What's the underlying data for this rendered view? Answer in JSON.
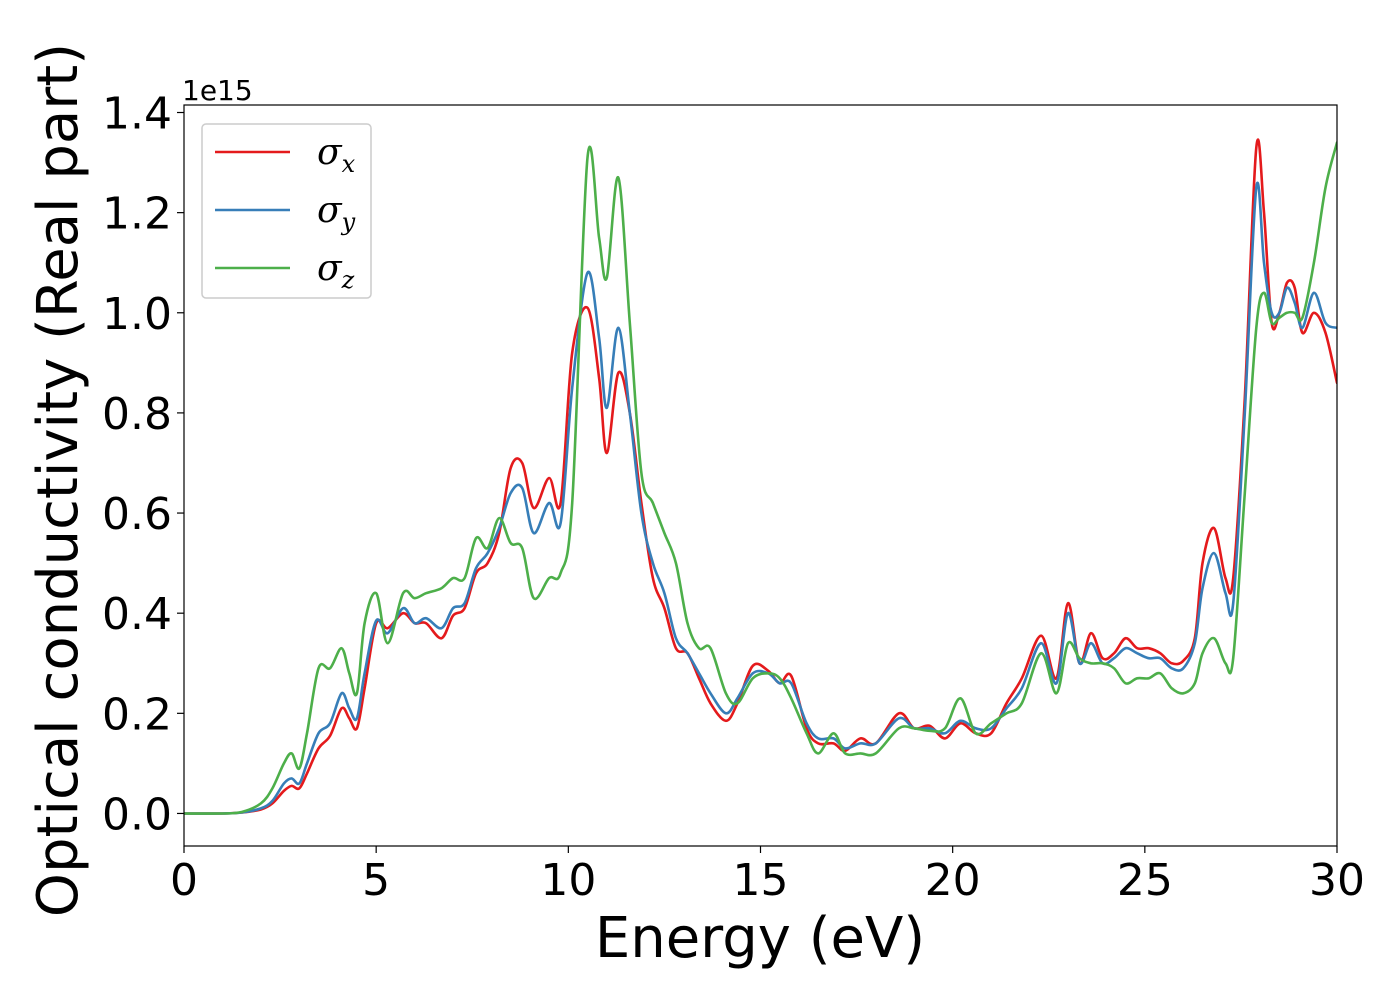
{
  "chart_data": {
    "type": "line",
    "title": "",
    "xlabel": "Energy (eV)",
    "ylabel": "Optical conductivity (Real part)",
    "y_offset_label": "1e15",
    "xlim": [
      0,
      30
    ],
    "ylim": [
      -0.065,
      1.415
    ],
    "x_ticks": [
      0,
      5,
      10,
      15,
      20,
      25,
      30
    ],
    "y_ticks": [
      0.0,
      0.2,
      0.4,
      0.6,
      0.8,
      1.0,
      1.2,
      1.4
    ],
    "x_tick_labels": [
      "0",
      "5",
      "10",
      "15",
      "20",
      "25",
      "30"
    ],
    "y_tick_labels": [
      "0.0",
      "0.2",
      "0.4",
      "0.6",
      "0.8",
      "1.0",
      "1.2",
      "1.4"
    ],
    "grid": false,
    "legend_position": "top-left",
    "series": [
      {
        "name": "σx",
        "symbol": "σ",
        "subscript": "x",
        "color": "#e41a1c",
        "x": [
          0,
          1,
          1.5,
          2,
          2.3,
          2.6,
          2.8,
          3.0,
          3.2,
          3.5,
          3.8,
          4.1,
          4.3,
          4.5,
          4.7,
          5.0,
          5.3,
          5.7,
          6.0,
          6.3,
          6.7,
          7.0,
          7.3,
          7.6,
          7.9,
          8.2,
          8.5,
          8.8,
          9.1,
          9.5,
          9.8,
          10.1,
          10.5,
          10.8,
          11.0,
          11.3,
          11.6,
          11.9,
          12.2,
          12.5,
          12.8,
          13.1,
          13.4,
          13.7,
          14.1,
          14.4,
          14.8,
          15.2,
          15.5,
          15.8,
          16.2,
          16.5,
          16.9,
          17.2,
          17.6,
          18.0,
          18.6,
          19.0,
          19.4,
          19.8,
          20.2,
          20.6,
          21.0,
          21.4,
          21.8,
          22.3,
          22.7,
          23.0,
          23.3,
          23.6,
          23.9,
          24.2,
          24.5,
          24.8,
          25.1,
          25.4,
          25.7,
          26.0,
          26.3,
          26.5,
          26.8,
          27.1,
          27.3,
          27.6,
          27.9,
          28.1,
          28.3,
          28.5,
          28.7,
          28.9,
          29.1,
          29.4,
          29.7,
          30.0
        ],
        "y": [
          0,
          0,
          0.002,
          0.008,
          0.02,
          0.045,
          0.055,
          0.05,
          0.08,
          0.13,
          0.155,
          0.21,
          0.19,
          0.17,
          0.25,
          0.38,
          0.37,
          0.4,
          0.38,
          0.38,
          0.35,
          0.395,
          0.41,
          0.48,
          0.5,
          0.56,
          0.69,
          0.7,
          0.61,
          0.67,
          0.62,
          0.92,
          1.01,
          0.87,
          0.72,
          0.88,
          0.8,
          0.62,
          0.47,
          0.41,
          0.33,
          0.32,
          0.27,
          0.22,
          0.185,
          0.22,
          0.295,
          0.285,
          0.26,
          0.275,
          0.17,
          0.14,
          0.14,
          0.125,
          0.15,
          0.14,
          0.2,
          0.17,
          0.175,
          0.15,
          0.18,
          0.16,
          0.16,
          0.22,
          0.27,
          0.355,
          0.27,
          0.42,
          0.3,
          0.36,
          0.31,
          0.32,
          0.35,
          0.33,
          0.33,
          0.32,
          0.3,
          0.305,
          0.35,
          0.5,
          0.57,
          0.47,
          0.47,
          0.83,
          1.33,
          1.2,
          0.98,
          1.0,
          1.06,
          1.05,
          0.96,
          1.0,
          0.96,
          0.86
        ]
      },
      {
        "name": "σy",
        "symbol": "σ",
        "subscript": "y",
        "color": "#377eb8",
        "x": [
          0,
          1,
          1.5,
          2,
          2.3,
          2.6,
          2.8,
          3.0,
          3.2,
          3.5,
          3.8,
          4.1,
          4.3,
          4.5,
          4.7,
          5.0,
          5.3,
          5.7,
          6.0,
          6.3,
          6.7,
          7.0,
          7.3,
          7.6,
          7.9,
          8.2,
          8.5,
          8.8,
          9.1,
          9.5,
          9.8,
          10.1,
          10.5,
          10.8,
          11.0,
          11.3,
          11.6,
          11.9,
          12.2,
          12.5,
          12.8,
          13.1,
          13.4,
          13.7,
          14.1,
          14.4,
          14.8,
          15.2,
          15.5,
          15.8,
          16.2,
          16.5,
          16.9,
          17.2,
          17.6,
          18.0,
          18.6,
          19.0,
          19.4,
          19.8,
          20.2,
          20.6,
          21.0,
          21.4,
          21.8,
          22.3,
          22.7,
          23.0,
          23.3,
          23.6,
          23.9,
          24.2,
          24.5,
          24.8,
          25.1,
          25.4,
          25.7,
          26.0,
          26.3,
          26.5,
          26.8,
          27.1,
          27.3,
          27.6,
          27.9,
          28.1,
          28.3,
          28.5,
          28.7,
          28.9,
          29.1,
          29.4,
          29.7,
          30.0
        ],
        "y": [
          0,
          0,
          0.002,
          0.01,
          0.025,
          0.06,
          0.07,
          0.06,
          0.1,
          0.16,
          0.18,
          0.24,
          0.21,
          0.19,
          0.28,
          0.385,
          0.36,
          0.41,
          0.38,
          0.39,
          0.37,
          0.41,
          0.42,
          0.49,
          0.52,
          0.57,
          0.64,
          0.65,
          0.56,
          0.62,
          0.58,
          0.85,
          1.08,
          0.95,
          0.81,
          0.97,
          0.8,
          0.6,
          0.5,
          0.44,
          0.35,
          0.32,
          0.28,
          0.24,
          0.2,
          0.23,
          0.28,
          0.28,
          0.26,
          0.26,
          0.18,
          0.15,
          0.15,
          0.13,
          0.14,
          0.14,
          0.19,
          0.17,
          0.17,
          0.16,
          0.185,
          0.17,
          0.17,
          0.21,
          0.25,
          0.34,
          0.26,
          0.4,
          0.3,
          0.34,
          0.3,
          0.31,
          0.33,
          0.32,
          0.31,
          0.31,
          0.29,
          0.29,
          0.34,
          0.45,
          0.52,
          0.44,
          0.42,
          0.8,
          1.25,
          1.1,
          1.0,
          1.0,
          1.05,
          1.02,
          0.97,
          1.04,
          0.98,
          0.97
        ]
      },
      {
        "name": "σz",
        "symbol": "σ",
        "subscript": "z",
        "color": "#4daf4a",
        "x": [
          0,
          1,
          1.5,
          2,
          2.3,
          2.6,
          2.8,
          3.0,
          3.2,
          3.5,
          3.8,
          4.1,
          4.3,
          4.5,
          4.7,
          5.0,
          5.3,
          5.7,
          6.0,
          6.3,
          6.7,
          7.0,
          7.3,
          7.6,
          7.9,
          8.2,
          8.5,
          8.8,
          9.1,
          9.5,
          9.8,
          10.1,
          10.5,
          10.8,
          11.0,
          11.3,
          11.6,
          11.9,
          12.2,
          12.5,
          12.8,
          13.1,
          13.4,
          13.7,
          14.1,
          14.4,
          14.8,
          15.2,
          15.5,
          15.8,
          16.2,
          16.5,
          16.9,
          17.2,
          17.6,
          18.0,
          18.6,
          19.0,
          19.4,
          19.8,
          20.2,
          20.6,
          21.0,
          21.4,
          21.8,
          22.3,
          22.7,
          23.0,
          23.3,
          23.6,
          23.9,
          24.2,
          24.5,
          24.8,
          25.1,
          25.4,
          25.7,
          26.0,
          26.3,
          26.5,
          26.8,
          27.1,
          27.3,
          27.6,
          27.9,
          28.1,
          28.3,
          28.5,
          28.7,
          28.9,
          29.1,
          29.4,
          29.7,
          30.0
        ],
        "y": [
          0,
          0,
          0.003,
          0.02,
          0.05,
          0.1,
          0.12,
          0.09,
          0.16,
          0.29,
          0.29,
          0.33,
          0.28,
          0.24,
          0.38,
          0.44,
          0.34,
          0.44,
          0.43,
          0.44,
          0.45,
          0.47,
          0.47,
          0.55,
          0.53,
          0.59,
          0.54,
          0.53,
          0.43,
          0.47,
          0.48,
          0.62,
          1.31,
          1.15,
          1.07,
          1.27,
          0.98,
          0.68,
          0.62,
          0.56,
          0.5,
          0.38,
          0.33,
          0.33,
          0.24,
          0.22,
          0.27,
          0.28,
          0.27,
          0.23,
          0.16,
          0.12,
          0.16,
          0.12,
          0.12,
          0.12,
          0.17,
          0.17,
          0.165,
          0.17,
          0.23,
          0.16,
          0.18,
          0.2,
          0.22,
          0.32,
          0.24,
          0.34,
          0.31,
          0.3,
          0.3,
          0.29,
          0.26,
          0.27,
          0.27,
          0.28,
          0.25,
          0.24,
          0.26,
          0.32,
          0.35,
          0.3,
          0.31,
          0.64,
          0.97,
          1.04,
          0.98,
          0.99,
          1.0,
          1.0,
          0.99,
          1.1,
          1.25,
          1.34
        ]
      }
    ]
  }
}
